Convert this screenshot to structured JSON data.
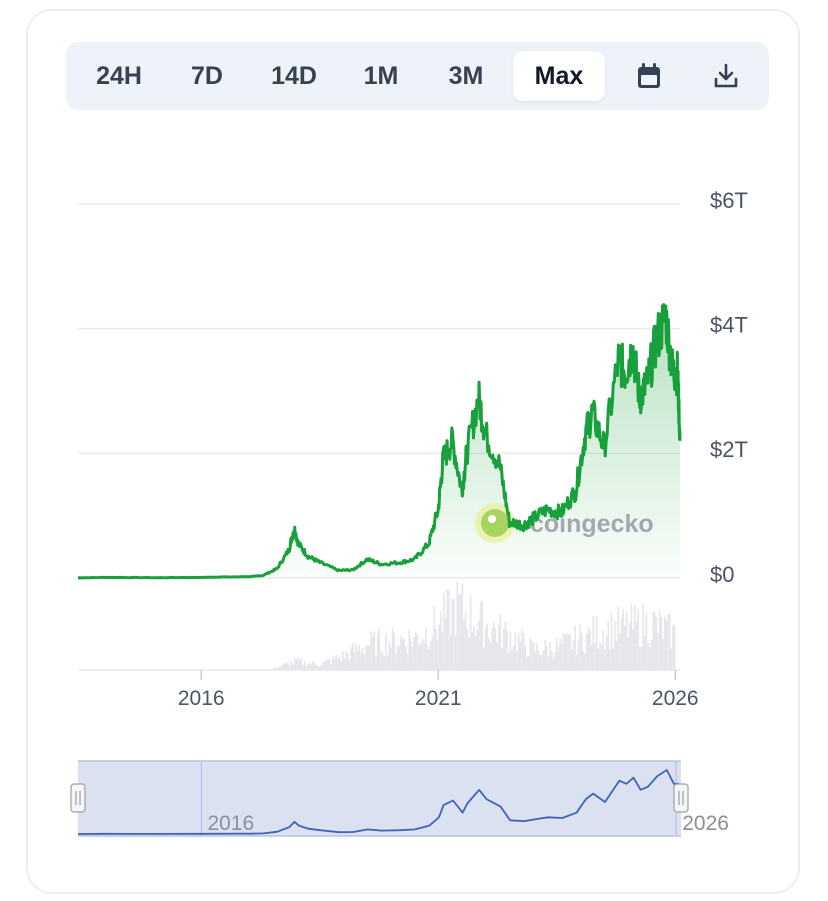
{
  "toolbar": {
    "ranges": [
      "24H",
      "7D",
      "14D",
      "1M",
      "3M",
      "Max"
    ],
    "active_range": "Max",
    "calendar_icon": "calendar-icon",
    "download_icon": "download-icon"
  },
  "watermark": {
    "text": "coingecko"
  },
  "colors": {
    "price_line": "#17a03b",
    "area_fill": "#17a03b",
    "volume": "#e4e6ea",
    "navigator_bg": "#d6dcf0",
    "navigator_line": "#3f63b5",
    "grid": "#e8eaee"
  },
  "chart_data": {
    "type": "area",
    "series": [
      {
        "x": [
          2013.4,
          2014.0,
          2015.0,
          2016.0,
          2016.8,
          2017.0,
          2017.3,
          2017.6,
          2017.85,
          2017.96,
          2018.05,
          2018.25,
          2018.5,
          2018.9,
          2019.2,
          2019.5,
          2019.8,
          2020.2,
          2020.5,
          2020.8,
          2021.0,
          2021.1,
          2021.3,
          2021.5,
          2021.6,
          2021.85,
          2022.0,
          2022.3,
          2022.5,
          2022.8,
          2023.0,
          2023.3,
          2023.6,
          2023.9,
          2024.1,
          2024.25,
          2024.5,
          2024.8,
          2024.95,
          2025.1,
          2025.25,
          2025.4,
          2025.6,
          2025.8,
          2025.95,
          2026.05,
          2026.1
        ],
        "values": [
          0.002,
          0.01,
          0.005,
          0.01,
          0.02,
          0.02,
          0.04,
          0.15,
          0.45,
          0.8,
          0.55,
          0.35,
          0.25,
          0.12,
          0.13,
          0.3,
          0.22,
          0.25,
          0.3,
          0.55,
          1.1,
          1.9,
          2.2,
          1.4,
          2.0,
          2.9,
          2.3,
          1.8,
          0.9,
          0.85,
          0.95,
          1.1,
          1.05,
          1.4,
          2.3,
          2.65,
          2.1,
          3.5,
          3.3,
          3.7,
          2.9,
          3.1,
          3.8,
          4.2,
          3.3,
          3.3,
          2.2
        ]
      }
    ],
    "y_ticks": [
      "$6T",
      "$4T",
      "$2T",
      "$0"
    ],
    "y_tick_values": [
      6,
      4,
      2,
      0
    ],
    "ylim": [
      0,
      6
    ],
    "x_ticks": [
      "2016",
      "2021",
      "2026"
    ],
    "x_tick_values": [
      2016,
      2021,
      2026
    ],
    "xlim": [
      2013.4,
      2026.1
    ],
    "volume": {
      "x": [
        2017.5,
        2018.0,
        2018.5,
        2019.0,
        2019.5,
        2020.0,
        2020.5,
        2021.0,
        2021.4,
        2021.8,
        2022.2,
        2022.6,
        2023.0,
        2023.5,
        2024.0,
        2024.5,
        2025.0,
        2025.5,
        2026.0
      ],
      "values": [
        0.03,
        0.15,
        0.1,
        0.25,
        0.45,
        0.5,
        0.55,
        0.8,
        1.1,
        0.85,
        0.7,
        0.55,
        0.35,
        0.4,
        0.55,
        0.7,
        0.75,
        0.8,
        0.6
      ]
    },
    "navigator": {
      "x_ticks": [
        "2016",
        "2026"
      ],
      "x_tick_values": [
        2016,
        2026
      ]
    },
    "grid": true,
    "legend": "none"
  }
}
